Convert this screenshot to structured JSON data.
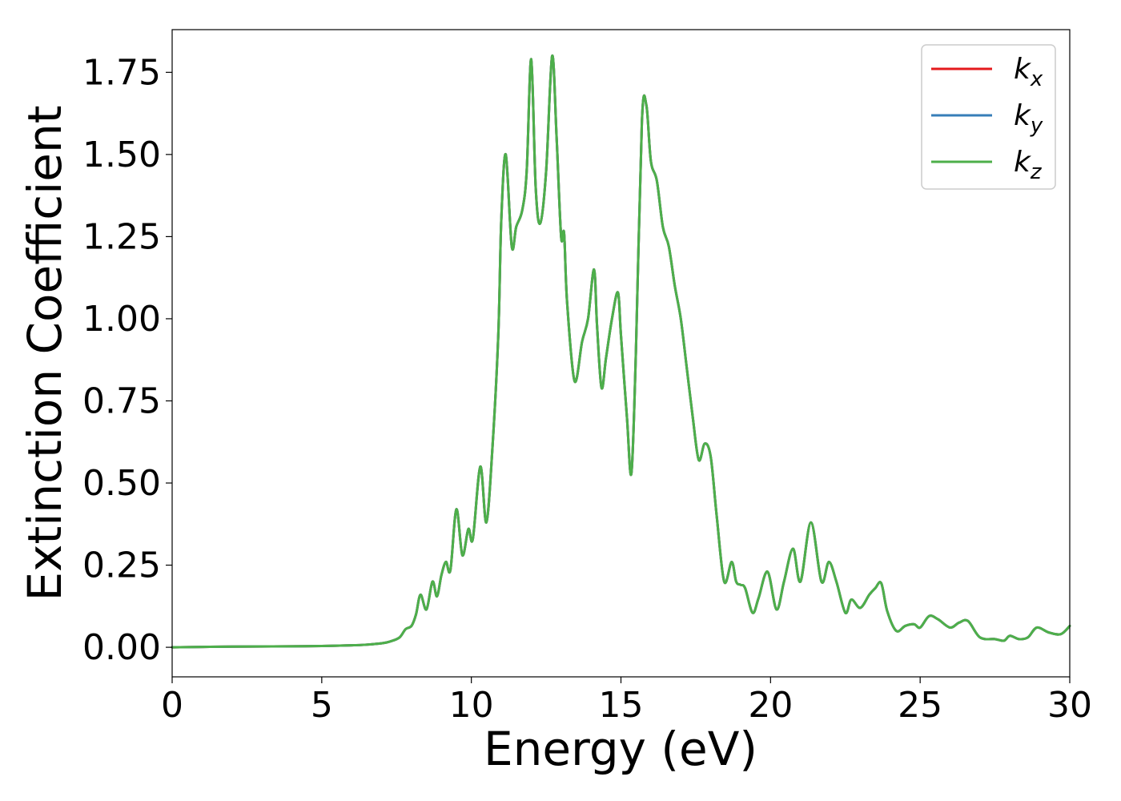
{
  "chart_data": {
    "type": "line",
    "xlabel": "Energy (eV)",
    "ylabel": "Extinction Coefficient",
    "xlim": [
      0,
      30
    ],
    "ylim": [
      -0.09,
      1.88
    ],
    "xticks": [
      0,
      5,
      10,
      15,
      20,
      25,
      30
    ],
    "xtick_labels": [
      "0",
      "5",
      "10",
      "15",
      "20",
      "25",
      "30"
    ],
    "yticks": [
      0.0,
      0.25,
      0.5,
      0.75,
      1.0,
      1.25,
      1.5,
      1.75
    ],
    "ytick_labels": [
      "0.00",
      "0.25",
      "0.50",
      "0.75",
      "1.00",
      "1.25",
      "1.50",
      "1.75"
    ],
    "grid": false,
    "legend_position": "top-right",
    "series": [
      {
        "name": "k",
        "subscript": "x",
        "color": "#e41a1c",
        "x": [
          0,
          2,
          4,
          5,
          6,
          6.5,
          7,
          7.3,
          7.6,
          7.8,
          8.0,
          8.15,
          8.3,
          8.5,
          8.7,
          8.85,
          9.0,
          9.15,
          9.3,
          9.5,
          9.7,
          9.9,
          10.05,
          10.3,
          10.5,
          10.7,
          10.9,
          11.0,
          11.15,
          11.35,
          11.5,
          11.7,
          11.85,
          12.0,
          12.15,
          12.3,
          12.5,
          12.7,
          12.85,
          13.0,
          13.1,
          13.2,
          13.45,
          13.7,
          13.9,
          14.1,
          14.2,
          14.35,
          14.5,
          14.7,
          14.9,
          15.0,
          15.2,
          15.35,
          15.5,
          15.7,
          15.85,
          16.0,
          16.2,
          16.4,
          16.6,
          16.8,
          17.0,
          17.2,
          17.4,
          17.6,
          17.8,
          18.0,
          18.2,
          18.45,
          18.7,
          18.85,
          19.0,
          19.15,
          19.4,
          19.6,
          19.9,
          20.2,
          20.45,
          20.75,
          21.0,
          21.35,
          21.7,
          21.95,
          22.2,
          22.5,
          22.7,
          23.0,
          23.3,
          23.5,
          23.7,
          23.9,
          24.2,
          24.5,
          24.8,
          25.0,
          25.3,
          25.6,
          26.0,
          26.3,
          26.6,
          27.0,
          27.5,
          27.8,
          28.0,
          28.3,
          28.6,
          28.9,
          29.3,
          29.7,
          30.0
        ],
        "y": [
          0.0,
          0.002,
          0.003,
          0.004,
          0.006,
          0.008,
          0.012,
          0.018,
          0.03,
          0.055,
          0.065,
          0.1,
          0.16,
          0.115,
          0.2,
          0.155,
          0.22,
          0.26,
          0.235,
          0.42,
          0.28,
          0.36,
          0.33,
          0.55,
          0.38,
          0.6,
          0.95,
          1.3,
          1.5,
          1.22,
          1.28,
          1.33,
          1.45,
          1.79,
          1.4,
          1.29,
          1.45,
          1.8,
          1.55,
          1.25,
          1.26,
          1.05,
          0.81,
          0.93,
          1.0,
          1.15,
          0.98,
          0.79,
          0.88,
          1.0,
          1.08,
          0.95,
          0.7,
          0.53,
          0.9,
          1.6,
          1.65,
          1.48,
          1.42,
          1.28,
          1.22,
          1.1,
          1.0,
          0.85,
          0.7,
          0.57,
          0.62,
          0.58,
          0.4,
          0.2,
          0.26,
          0.2,
          0.19,
          0.18,
          0.105,
          0.15,
          0.23,
          0.115,
          0.2,
          0.3,
          0.2,
          0.38,
          0.2,
          0.26,
          0.2,
          0.105,
          0.145,
          0.12,
          0.16,
          0.18,
          0.195,
          0.11,
          0.05,
          0.065,
          0.07,
          0.06,
          0.095,
          0.085,
          0.06,
          0.075,
          0.08,
          0.03,
          0.025,
          0.02,
          0.035,
          0.025,
          0.03,
          0.06,
          0.045,
          0.04,
          0.065
        ]
      },
      {
        "name": "k",
        "subscript": "y",
        "color": "#377eb8",
        "x": [
          0,
          2,
          4,
          5,
          6,
          6.5,
          7,
          7.3,
          7.6,
          7.8,
          8.0,
          8.15,
          8.3,
          8.5,
          8.7,
          8.85,
          9.0,
          9.15,
          9.3,
          9.5,
          9.7,
          9.9,
          10.05,
          10.3,
          10.5,
          10.7,
          10.9,
          11.0,
          11.15,
          11.35,
          11.5,
          11.7,
          11.85,
          12.0,
          12.15,
          12.3,
          12.5,
          12.7,
          12.85,
          13.0,
          13.1,
          13.2,
          13.45,
          13.7,
          13.9,
          14.1,
          14.2,
          14.35,
          14.5,
          14.7,
          14.9,
          15.0,
          15.2,
          15.35,
          15.5,
          15.7,
          15.85,
          16.0,
          16.2,
          16.4,
          16.6,
          16.8,
          17.0,
          17.2,
          17.4,
          17.6,
          17.8,
          18.0,
          18.2,
          18.45,
          18.7,
          18.85,
          19.0,
          19.15,
          19.4,
          19.6,
          19.9,
          20.2,
          20.45,
          20.75,
          21.0,
          21.35,
          21.7,
          21.95,
          22.2,
          22.5,
          22.7,
          23.0,
          23.3,
          23.5,
          23.7,
          23.9,
          24.2,
          24.5,
          24.8,
          25.0,
          25.3,
          25.6,
          26.0,
          26.3,
          26.6,
          27.0,
          27.5,
          27.8,
          28.0,
          28.3,
          28.6,
          28.9,
          29.3,
          29.7,
          30.0
        ],
        "y": [
          0.0,
          0.002,
          0.003,
          0.004,
          0.006,
          0.008,
          0.012,
          0.018,
          0.03,
          0.055,
          0.065,
          0.1,
          0.16,
          0.115,
          0.2,
          0.155,
          0.22,
          0.26,
          0.235,
          0.42,
          0.28,
          0.36,
          0.33,
          0.55,
          0.38,
          0.6,
          0.95,
          1.3,
          1.5,
          1.22,
          1.28,
          1.33,
          1.45,
          1.79,
          1.4,
          1.29,
          1.45,
          1.8,
          1.55,
          1.25,
          1.26,
          1.05,
          0.81,
          0.93,
          1.0,
          1.15,
          0.98,
          0.79,
          0.88,
          1.0,
          1.08,
          0.95,
          0.7,
          0.53,
          0.9,
          1.6,
          1.65,
          1.48,
          1.42,
          1.28,
          1.22,
          1.1,
          1.0,
          0.85,
          0.7,
          0.57,
          0.62,
          0.58,
          0.4,
          0.2,
          0.26,
          0.2,
          0.19,
          0.18,
          0.105,
          0.15,
          0.23,
          0.115,
          0.2,
          0.3,
          0.2,
          0.38,
          0.2,
          0.26,
          0.2,
          0.105,
          0.145,
          0.12,
          0.16,
          0.18,
          0.195,
          0.11,
          0.05,
          0.065,
          0.07,
          0.06,
          0.095,
          0.085,
          0.06,
          0.075,
          0.08,
          0.03,
          0.025,
          0.02,
          0.035,
          0.025,
          0.03,
          0.06,
          0.045,
          0.04,
          0.065
        ]
      },
      {
        "name": "k",
        "subscript": "z",
        "color": "#4daf4a",
        "x": [
          0,
          2,
          4,
          5,
          6,
          6.5,
          7,
          7.3,
          7.6,
          7.8,
          8.0,
          8.15,
          8.3,
          8.5,
          8.7,
          8.85,
          9.0,
          9.15,
          9.3,
          9.5,
          9.7,
          9.9,
          10.05,
          10.3,
          10.5,
          10.7,
          10.9,
          11.0,
          11.15,
          11.35,
          11.5,
          11.7,
          11.85,
          12.0,
          12.15,
          12.3,
          12.5,
          12.7,
          12.85,
          13.0,
          13.1,
          13.2,
          13.45,
          13.7,
          13.9,
          14.1,
          14.2,
          14.35,
          14.5,
          14.7,
          14.9,
          15.0,
          15.2,
          15.35,
          15.5,
          15.7,
          15.85,
          16.0,
          16.2,
          16.4,
          16.6,
          16.8,
          17.0,
          17.2,
          17.4,
          17.6,
          17.8,
          18.0,
          18.2,
          18.45,
          18.7,
          18.85,
          19.0,
          19.15,
          19.4,
          19.6,
          19.9,
          20.2,
          20.45,
          20.75,
          21.0,
          21.35,
          21.7,
          21.95,
          22.2,
          22.5,
          22.7,
          23.0,
          23.3,
          23.5,
          23.7,
          23.9,
          24.2,
          24.5,
          24.8,
          25.0,
          25.3,
          25.6,
          26.0,
          26.3,
          26.6,
          27.0,
          27.5,
          27.8,
          28.0,
          28.3,
          28.6,
          28.9,
          29.3,
          29.7,
          30.0
        ],
        "y": [
          0.0,
          0.002,
          0.003,
          0.004,
          0.006,
          0.008,
          0.012,
          0.018,
          0.03,
          0.055,
          0.065,
          0.1,
          0.16,
          0.115,
          0.2,
          0.155,
          0.22,
          0.26,
          0.235,
          0.42,
          0.28,
          0.36,
          0.33,
          0.55,
          0.38,
          0.6,
          0.95,
          1.3,
          1.5,
          1.22,
          1.28,
          1.33,
          1.45,
          1.79,
          1.4,
          1.29,
          1.45,
          1.8,
          1.55,
          1.25,
          1.26,
          1.05,
          0.81,
          0.93,
          1.0,
          1.15,
          0.98,
          0.79,
          0.88,
          1.0,
          1.08,
          0.95,
          0.7,
          0.53,
          0.9,
          1.6,
          1.65,
          1.48,
          1.42,
          1.28,
          1.22,
          1.1,
          1.0,
          0.85,
          0.7,
          0.57,
          0.62,
          0.58,
          0.4,
          0.2,
          0.26,
          0.2,
          0.19,
          0.18,
          0.105,
          0.15,
          0.23,
          0.115,
          0.2,
          0.3,
          0.2,
          0.38,
          0.2,
          0.26,
          0.2,
          0.105,
          0.145,
          0.12,
          0.16,
          0.18,
          0.195,
          0.11,
          0.05,
          0.065,
          0.07,
          0.06,
          0.095,
          0.085,
          0.06,
          0.075,
          0.08,
          0.03,
          0.025,
          0.02,
          0.035,
          0.025,
          0.03,
          0.06,
          0.045,
          0.04,
          0.065
        ]
      }
    ]
  }
}
